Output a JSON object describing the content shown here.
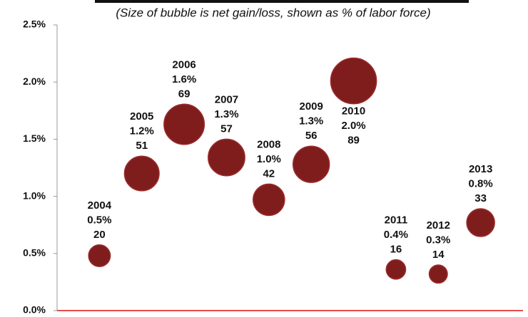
{
  "chart_data": {
    "type": "bubble",
    "subtitle": "(Size of bubble is net gain/loss, shown as % of labor force)",
    "x": [
      2004,
      2005,
      2006,
      2007,
      2008,
      2009,
      2010,
      2011,
      2012,
      2013
    ],
    "values": [
      0.48,
      1.2,
      1.63,
      1.34,
      0.97,
      1.28,
      2.01,
      0.36,
      0.32,
      0.77
    ],
    "value_labels": [
      "0.5%",
      "1.2%",
      "1.6%",
      "1.3%",
      "1.0%",
      "1.3%",
      "2.0%",
      "0.4%",
      "0.3%",
      "0.8%"
    ],
    "sizes": [
      20,
      51,
      69,
      57,
      42,
      56,
      89,
      16,
      14,
      33
    ],
    "color": "#7f1d1d",
    "xlim": [
      2003,
      2014
    ],
    "ylim": [
      0,
      2.5
    ],
    "yticks": [
      {
        "value": 0,
        "label": "0.0%"
      },
      {
        "value": 0.5,
        "label": "0.5%"
      },
      {
        "value": 1,
        "label": "1.0%"
      },
      {
        "value": 1.5,
        "label": "1.5%"
      },
      {
        "value": 2,
        "label": "2.0%"
      },
      {
        "value": 2.5,
        "label": "2.5%"
      }
    ]
  }
}
